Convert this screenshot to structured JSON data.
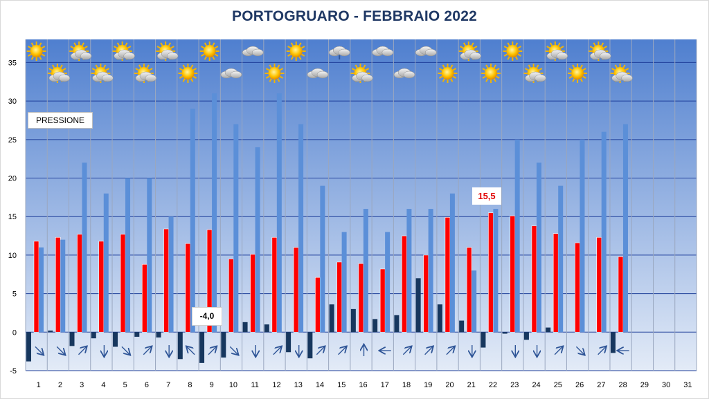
{
  "title": "PORTOGRUARO - FEBBRAIO 2022",
  "pressure_label": "PRESSIONE",
  "min_label": "-4,0",
  "max_label": "15,5",
  "colors": {
    "background_top": "#4f7fcf",
    "background_bottom": "#e3ebf7",
    "max_temp": "#ff0000",
    "wind_pressure": "#5b8fd8",
    "min_temp": "#17375e",
    "grid": "#1f3f9a",
    "title": "#1f3864",
    "arrow": "#2f5597"
  },
  "chart_data": {
    "type": "bar",
    "title": "PORTOGRUARO - FEBBRAIO 2022",
    "xlabel": "",
    "ylabel": "",
    "ylim": [
      -5,
      38
    ],
    "yticks": [
      -5,
      0,
      5,
      10,
      15,
      20,
      25,
      30,
      35
    ],
    "grid": true,
    "categories": [
      "1",
      "2",
      "3",
      "4",
      "5",
      "6",
      "7",
      "8",
      "9",
      "10",
      "11",
      "12",
      "13",
      "14",
      "15",
      "16",
      "17",
      "18",
      "19",
      "20",
      "21",
      "22",
      "23",
      "24",
      "25",
      "26",
      "27",
      "28",
      "29",
      "30",
      "31"
    ],
    "series": [
      {
        "key": "tmax",
        "color": "#ff0000",
        "values": [
          11.8,
          12.3,
          12.7,
          11.8,
          12.7,
          8.8,
          13.4,
          11.5,
          13.3,
          9.5,
          10.1,
          12.3,
          11.0,
          7.1,
          9.1,
          8.9,
          8.2,
          12.5,
          10.0,
          14.9,
          11.0,
          15.5,
          15.1,
          13.8,
          12.8,
          11.6,
          12.3,
          9.8,
          null,
          null,
          null
        ]
      },
      {
        "key": "wind",
        "color": "#5b8fd8",
        "values": [
          11.0,
          12.0,
          22.0,
          18.0,
          20.0,
          20.0,
          15.0,
          29.0,
          31.0,
          27.0,
          24.0,
          31.0,
          27.0,
          19.0,
          13.0,
          16.0,
          13.0,
          16.0,
          16.0,
          18.0,
          8.0,
          16.0,
          25.0,
          22.0,
          19.0,
          25.0,
          26.0,
          27.0,
          null,
          null,
          null
        ]
      },
      {
        "key": "tmin",
        "color": "#17375e",
        "values": [
          -3.8,
          0.2,
          -1.8,
          -0.8,
          -1.9,
          -0.6,
          -0.7,
          -3.5,
          -4.0,
          -3.3,
          1.3,
          1.0,
          -2.6,
          -3.4,
          3.6,
          3.0,
          1.7,
          2.2,
          7.0,
          3.6,
          1.5,
          -2.0,
          -0.2,
          -1.0,
          0.6,
          0.0,
          null,
          -2.7,
          null,
          null,
          null
        ]
      }
    ],
    "wind_direction_deg": [
      135,
      135,
      45,
      180,
      135,
      45,
      180,
      315,
      45,
      135,
      180,
      45,
      180,
      45,
      45,
      0,
      270,
      45,
      45,
      45,
      180,
      null,
      180,
      180,
      45,
      135,
      45,
      270,
      null,
      null,
      null
    ],
    "weather_icons": [
      "sun",
      "partly-cloudy",
      "partly-cloudy",
      "partly-cloudy",
      "partly-cloudy",
      "partly-cloudy",
      "partly-cloudy",
      "sun",
      "sun",
      "cloud",
      "cloud",
      "sun",
      "sun",
      "cloud",
      "rain",
      "partly-cloudy",
      "cloud",
      "cloud",
      "cloud",
      "sun",
      "partly-cloudy",
      "sun",
      "sun",
      "partly-cloudy",
      "partly-cloudy",
      "sun",
      "partly-cloudy",
      "partly-cloudy",
      null,
      null,
      null
    ]
  }
}
